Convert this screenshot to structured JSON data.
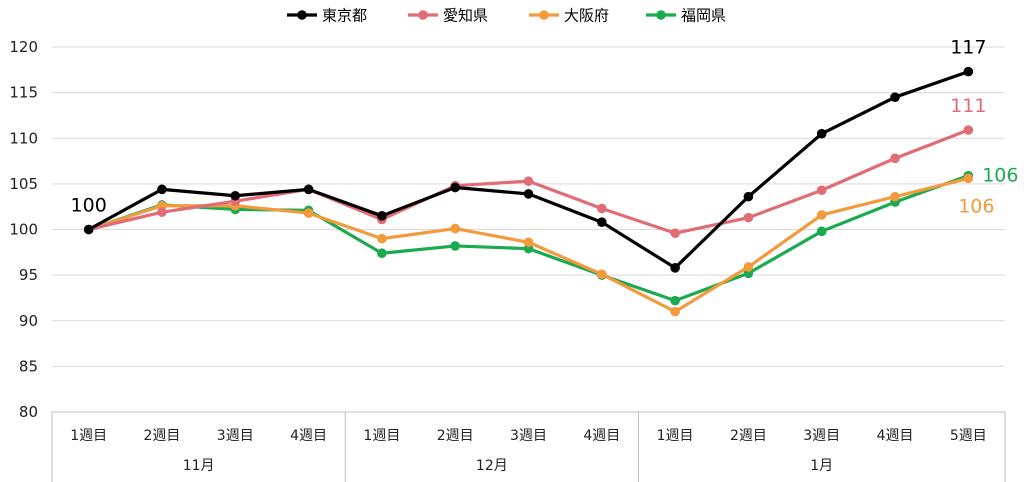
{
  "chart_data": {
    "type": "line",
    "title": "",
    "xlabel": "",
    "ylabel": "",
    "ylim": [
      80,
      120
    ],
    "yticks": [
      "80",
      "85",
      "90",
      "95",
      "100",
      "105",
      "110",
      "115",
      "120"
    ],
    "grid": "horizontal",
    "legend_position": "top-center",
    "categories": [
      "1週目",
      "2週目",
      "3週目",
      "4週目",
      "1週目",
      "2週目",
      "3週目",
      "4週目",
      "1週目",
      "2週目",
      "3週目",
      "4週目",
      "5週目"
    ],
    "groups": [
      {
        "label": "11月",
        "count": 4
      },
      {
        "label": "12月",
        "count": 4
      },
      {
        "label": "1月",
        "count": 5
      }
    ],
    "series": [
      {
        "name": "東京都",
        "color": "#000000",
        "values": [
          100,
          104.4,
          103.7,
          104.4,
          101.5,
          104.6,
          103.9,
          100.8,
          95.8,
          103.6,
          110.5,
          114.5,
          117.3
        ],
        "labels": [
          {
            "index": 0,
            "text": "100"
          },
          {
            "index": 12,
            "text": "117"
          }
        ]
      },
      {
        "name": "愛知県",
        "color": "#E06C75",
        "values": [
          100,
          101.9,
          103.1,
          104.4,
          101.1,
          104.8,
          105.3,
          102.3,
          99.6,
          101.3,
          104.3,
          107.8,
          110.9
        ],
        "labels": [
          {
            "index": 12,
            "text": "111"
          }
        ]
      },
      {
        "name": "大阪府",
        "color": "#F39A3C",
        "values": [
          100,
          102.6,
          102.6,
          101.8,
          99.0,
          100.1,
          98.6,
          95.1,
          91.0,
          95.9,
          101.6,
          103.6,
          105.6
        ],
        "labels": [
          {
            "index": 12,
            "text": "106"
          }
        ]
      },
      {
        "name": "福岡県",
        "color": "#1BAA50",
        "values": [
          100,
          102.7,
          102.2,
          102.1,
          97.4,
          98.2,
          97.9,
          95.0,
          92.2,
          95.2,
          99.8,
          103.0,
          105.9
        ],
        "labels": [
          {
            "index": 12,
            "text": "106"
          }
        ]
      }
    ]
  }
}
